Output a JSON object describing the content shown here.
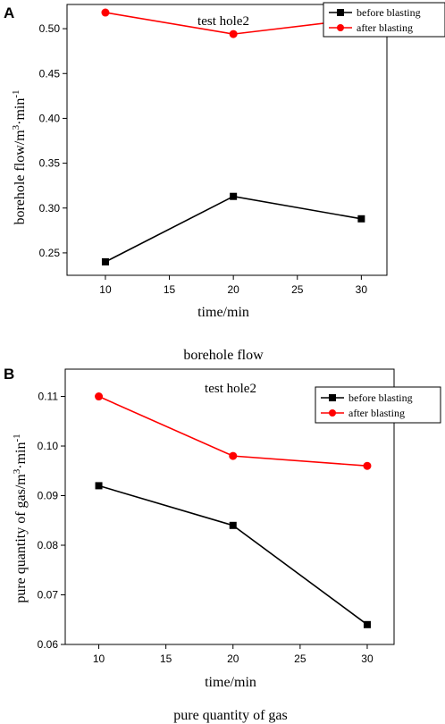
{
  "colors": {
    "before": "#000000",
    "after": "#ff0000",
    "axis": "#000000"
  },
  "chart_data": [
    {
      "type": "line",
      "panel_label": "A",
      "title": "test hole2",
      "xlabel": "time/min",
      "ylabel_main": "borehole flow/m",
      "ylabel_sup1": "3",
      "ylabel_mid": "·min",
      "ylabel_sup2": "-1",
      "caption": "borehole flow",
      "xlim": [
        7,
        32
      ],
      "ylim": [
        0.225,
        0.527
      ],
      "xticks": [
        10,
        15,
        20,
        25,
        30
      ],
      "yticks": [
        0.25,
        0.3,
        0.35,
        0.4,
        0.45,
        0.5
      ],
      "ytick_labels": [
        "0.25",
        "0.30",
        "0.35",
        "0.40",
        "0.45",
        "0.50"
      ],
      "x": [
        10,
        20,
        30
      ],
      "series": [
        {
          "name": "before blasting",
          "marker": "square",
          "color": "#000000",
          "values": [
            0.24,
            0.313,
            0.288
          ]
        },
        {
          "name": "after blasting",
          "marker": "circle",
          "color": "#ff0000",
          "values": [
            0.518,
            0.494,
            0.511
          ]
        }
      ],
      "legend_position": "top-right"
    },
    {
      "type": "line",
      "panel_label": "B",
      "title": "test hole2",
      "xlabel": "time/min",
      "ylabel_main": "pure quantity of gas/m",
      "ylabel_sup1": "3",
      "ylabel_mid": "·min",
      "ylabel_sup2": "-1",
      "caption": "pure quantity of gas",
      "xlim": [
        7.5,
        32
      ],
      "ylim": [
        0.06,
        0.1155
      ],
      "xticks": [
        10,
        15,
        20,
        25,
        30
      ],
      "yticks": [
        0.06,
        0.07,
        0.08,
        0.09,
        0.1,
        0.11
      ],
      "ytick_labels": [
        "0.06",
        "0.07",
        "0.08",
        "0.09",
        "0.10",
        "0.11"
      ],
      "x": [
        10,
        20,
        30
      ],
      "series": [
        {
          "name": "before blasting",
          "marker": "square",
          "color": "#000000",
          "values": [
            0.092,
            0.084,
            0.064
          ]
        },
        {
          "name": "after blasting",
          "marker": "circle",
          "color": "#ff0000",
          "values": [
            0.11,
            0.098,
            0.096
          ]
        }
      ],
      "legend_position": "top-right"
    }
  ]
}
